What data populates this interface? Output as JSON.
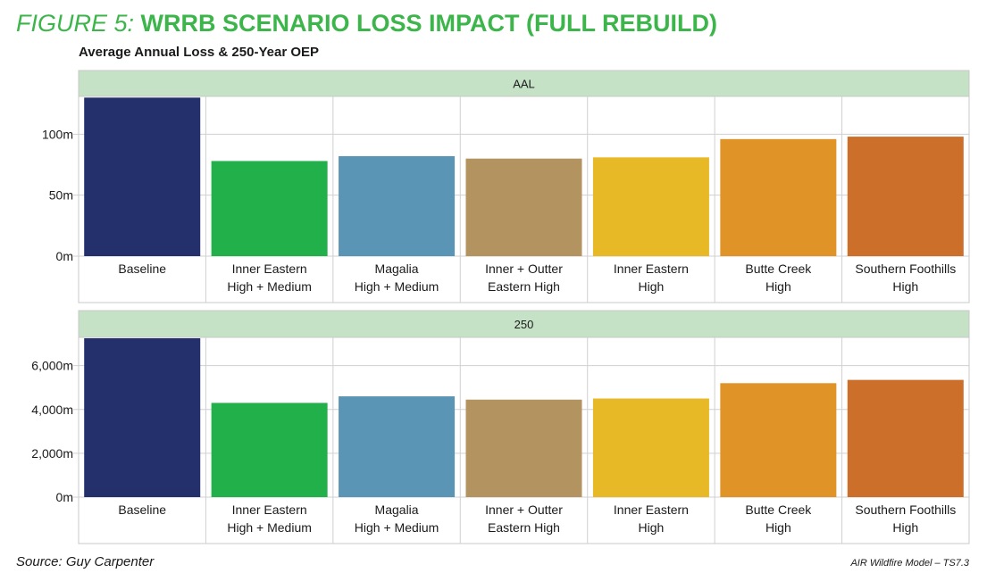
{
  "figure": {
    "title_prefix": "FIGURE 5:",
    "title_main": "WRRB SCENARIO LOSS IMPACT (FULL REBUILD)",
    "subtitle": "Average Annual Loss & 250-Year OEP",
    "source": "Source: Guy Carpenter",
    "footer": "AIR Wildfire Model – TS7.3"
  },
  "colors": {
    "title_green": "#3cb54a",
    "panel_header": "#c6e2c6",
    "grid": "#d0d0d0",
    "bars": [
      "#24306b",
      "#22b04b",
      "#5b95b5",
      "#b39360",
      "#e8b927",
      "#e09326",
      "#cc6f2b"
    ]
  },
  "chart_data": [
    {
      "type": "bar",
      "panel": "AAL",
      "categories": [
        [
          "Baseline"
        ],
        [
          "Inner Eastern",
          "High + Medium"
        ],
        [
          "Magalia",
          "High + Medium"
        ],
        [
          "Inner + Outter",
          "Eastern High"
        ],
        [
          "Inner Eastern",
          "High"
        ],
        [
          "Butte Creek",
          "High"
        ],
        [
          "Southern Foothills",
          "High"
        ]
      ],
      "values": [
        130,
        78,
        82,
        80,
        81,
        96,
        98
      ],
      "ylim": [
        0,
        131
      ],
      "yticks": [
        0,
        50,
        100
      ],
      "ytick_labels": [
        "0m",
        "50m",
        "100m"
      ],
      "grid": true
    },
    {
      "type": "bar",
      "panel": "250",
      "categories": [
        [
          "Baseline"
        ],
        [
          "Inner Eastern",
          "High + Medium"
        ],
        [
          "Magalia",
          "High + Medium"
        ],
        [
          "Inner + Outter",
          "Eastern High"
        ],
        [
          "Inner Eastern",
          "High"
        ],
        [
          "Butte Creek",
          "High"
        ],
        [
          "Southern Foothills",
          "High"
        ]
      ],
      "values": [
        7250,
        4300,
        4600,
        4450,
        4500,
        5200,
        5350
      ],
      "ylim": [
        0,
        7290
      ],
      "yticks": [
        0,
        2000,
        4000,
        6000
      ],
      "ytick_labels": [
        "0m",
        "2,000m",
        "4,000m",
        "6,000m"
      ],
      "grid": true
    }
  ]
}
